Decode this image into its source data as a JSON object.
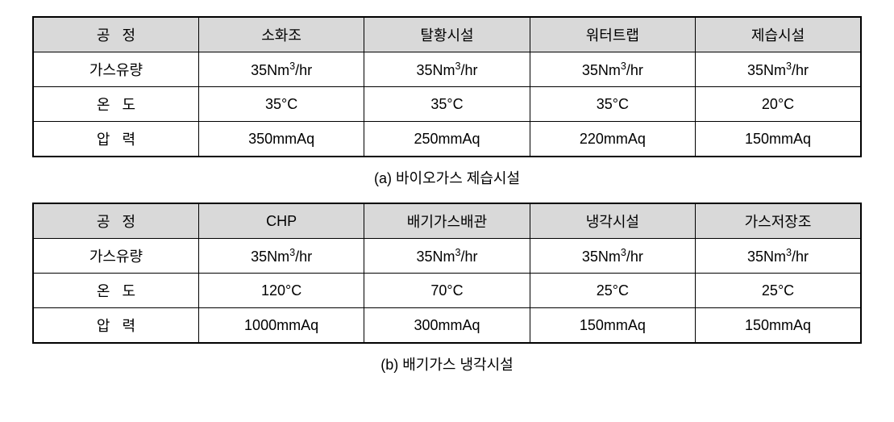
{
  "tables": [
    {
      "caption": "(a) 바이오가스 제습시설",
      "columns": [
        "공   정",
        "소화조",
        "탈황시설",
        "워터트랩",
        "제습시설"
      ],
      "rows": [
        {
          "label": "가스유량",
          "cells": [
            "35Nm³/hr",
            "35Nm³/hr",
            "35Nm³/hr",
            "35Nm³/hr"
          ]
        },
        {
          "label": "온   도",
          "cells": [
            "35°C",
            "35°C",
            "35°C",
            "20°C"
          ]
        },
        {
          "label": "압   력",
          "cells": [
            "350mmAq",
            "250mmAq",
            "220mmAq",
            "150mmAq"
          ]
        }
      ]
    },
    {
      "caption": "(b) 배기가스 냉각시설",
      "columns": [
        "공   정",
        "CHP",
        "배기가스배관",
        "냉각시설",
        "가스저장조"
      ],
      "rows": [
        {
          "label": "가스유량",
          "cells": [
            "35Nm³/hr",
            "35Nm³/hr",
            "35Nm³/hr",
            "35Nm³/hr"
          ]
        },
        {
          "label": "온   도",
          "cells": [
            "120°C",
            "70°C",
            "25°C",
            "25°C"
          ]
        },
        {
          "label": "압   력",
          "cells": [
            "1000mmAq",
            "300mmAq",
            "150mmAq",
            "150mmAq"
          ]
        }
      ]
    }
  ],
  "style": {
    "header_bg": "#d9d9d9",
    "border_color": "#000000",
    "font_size_pt": 14,
    "caption_font_size_pt": 14,
    "background": "#ffffff"
  }
}
